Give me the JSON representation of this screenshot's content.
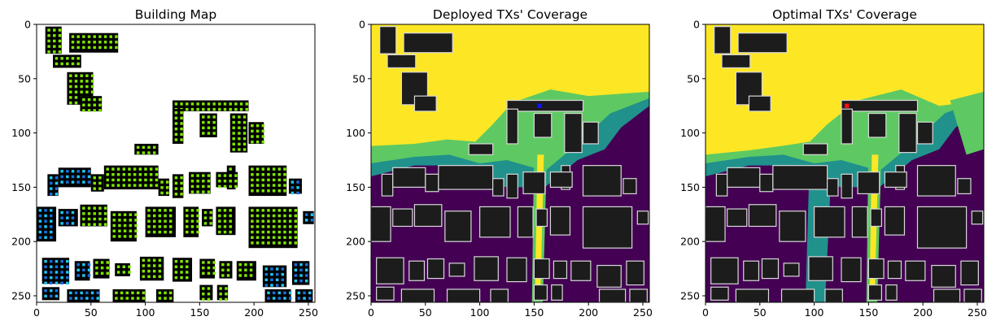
{
  "figure": {
    "panels": [
      {
        "id": "building",
        "title": "Building Map"
      },
      {
        "id": "deployed",
        "title": "Deployed TXs' Coverage"
      },
      {
        "id": "optimal",
        "title": "Optimal TXs' Coverage"
      }
    ]
  },
  "chart_data": [
    {
      "type": "heatmap",
      "title": "Building Map",
      "xlim": [
        0,
        256
      ],
      "ylim": [
        256,
        0
      ],
      "x_ticks": [
        0,
        50,
        100,
        150,
        200,
        250
      ],
      "y_ticks": [
        0,
        50,
        100,
        150,
        200,
        250
      ],
      "grid": false,
      "colors": {
        "background": "#ffffff",
        "building": "#000000",
        "cell_green": "#7fe600",
        "cell_cyan": "#1ec8f0",
        "cell_blue": "#1a6fe0",
        "cell_darkblue": "#0a1ed8"
      }
    },
    {
      "type": "heatmap",
      "title": "Deployed TXs' Coverage",
      "xlim": [
        0,
        256
      ],
      "ylim": [
        256,
        0
      ],
      "x_ticks": [
        0,
        50,
        100,
        150,
        200,
        250
      ],
      "y_ticks": [
        0,
        50,
        100,
        150,
        200,
        250
      ],
      "grid": false,
      "tx_marker": {
        "x": 155,
        "y": 75,
        "color": "#1010ff"
      },
      "colors": {
        "no_coverage": "#440154",
        "low": "#21918c",
        "mid": "#5ec962",
        "high": "#fde725",
        "building": "#1c1c1c",
        "outline": "#d8d8d8"
      }
    },
    {
      "type": "heatmap",
      "title": "Optimal TXs' Coverage",
      "xlim": [
        0,
        256
      ],
      "ylim": [
        256,
        0
      ],
      "x_ticks": [
        0,
        50,
        100,
        150,
        200,
        250
      ],
      "y_ticks": [
        0,
        50,
        100,
        150,
        200,
        250
      ],
      "grid": false,
      "tx_marker": {
        "x": 130,
        "y": 75,
        "color": "#ff1010"
      },
      "colors": {
        "no_coverage": "#440154",
        "low": "#21918c",
        "mid": "#5ec962",
        "high": "#fde725",
        "building": "#1c1c1c",
        "outline": "#d8d8d8"
      }
    }
  ]
}
